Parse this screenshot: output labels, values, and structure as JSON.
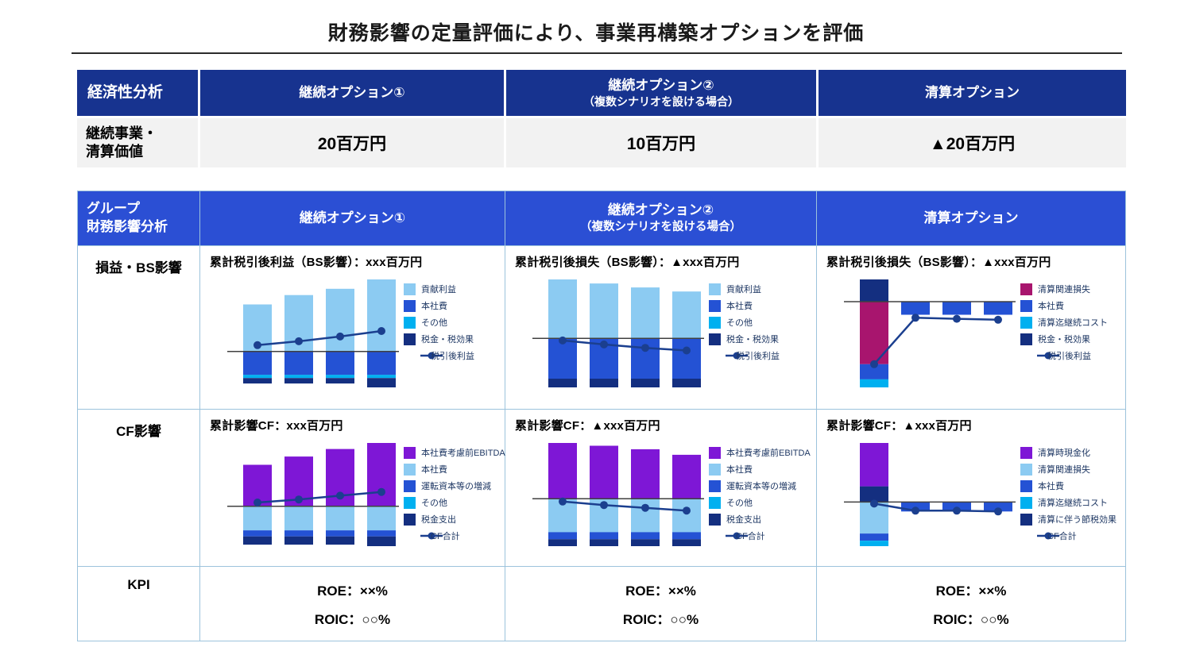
{
  "title": "財務影響の定量評価により、事業再構築オプションを評価",
  "colors": {
    "table1_header_bg": "#17338F",
    "table2_header_bg": "#2B4FD4",
    "table1_row_bg": "#F2F2F2",
    "table_border": "#9CC3DC",
    "legend_text": "#1F3864",
    "axis": "#404040",
    "light_blue": "#8CCBF2",
    "blue": "#2452D4",
    "cyan": "#00B0F0",
    "navy": "#142F80",
    "purple": "#7E17D6",
    "magenta": "#A8156E",
    "line": "#1B3F8F"
  },
  "table1": {
    "header_label": "経済性分析",
    "columns": [
      {
        "label": "継続オプション①",
        "sublabel": ""
      },
      {
        "label": "継続オプション②",
        "sublabel": "（複数シナリオを設ける場合）"
      },
      {
        "label": "清算オプション",
        "sublabel": ""
      }
    ],
    "row_label_line1": "継続事業・",
    "row_label_line2": "清算価値",
    "values": [
      "20百万円",
      "10百万円",
      "▲20百万円"
    ]
  },
  "table2": {
    "header_label_line1": "グループ",
    "header_label_line2": "財務影響分析",
    "columns": [
      {
        "label": "継続オプション①",
        "sublabel": ""
      },
      {
        "label": "継続オプション②",
        "sublabel": "（複数シナリオを設ける場合）"
      },
      {
        "label": "清算オプション",
        "sublabel": ""
      }
    ],
    "bs_row": {
      "label": "損益・BS影響",
      "cells": [
        {
          "title": "累計税引後利益（BS影響）：xxx百万円",
          "chart": "bs_opt1"
        },
        {
          "title": "累計税引後損失（BS影響）：▲xxx百万円",
          "chart": "bs_opt2"
        },
        {
          "title": "累計税引後損失（BS影響）：▲xxx百万円",
          "chart": "bs_liq"
        }
      ]
    },
    "cf_row": {
      "label": "CF影響",
      "cells": [
        {
          "title": "累計影響CF：xxx百万円",
          "chart": "cf_opt1"
        },
        {
          "title": "累計影響CF：▲xxx百万円",
          "chart": "cf_opt2"
        },
        {
          "title": "累計影響CF：▲xxx百万円",
          "chart": "cf_liq"
        }
      ]
    },
    "kpi_row": {
      "label": "KPI",
      "cells": [
        {
          "roe": "ROE：××%",
          "roic": "ROIC：○○%"
        },
        {
          "roe": "ROE：××%",
          "roic": "ROIC：○○%"
        },
        {
          "roe": "ROE：××%",
          "roic": "ROIC：○○%"
        }
      ]
    }
  },
  "chart_data": [
    {
      "id": "bs_opt1",
      "type": "bar",
      "stacked": true,
      "title": "累計税引後利益（BS影響）：xxx百万円",
      "series": [
        {
          "name": "貢献利益",
          "color": "light_blue",
          "values": [
            60,
            72,
            80,
            92
          ]
        },
        {
          "name": "本社費",
          "color": "blue",
          "values": [
            -30,
            -30,
            -30,
            -30
          ]
        },
        {
          "name": "その他",
          "color": "cyan",
          "values": [
            -4,
            -4,
            -4,
            -4
          ]
        },
        {
          "name": "税金・税効果",
          "color": "navy",
          "values": [
            -7,
            -7,
            -7,
            -12
          ]
        }
      ],
      "line": {
        "name": "税引後利益",
        "values": [
          8,
          13,
          19,
          26
        ]
      },
      "legend": [
        {
          "label": "貢献利益",
          "color": "light_blue"
        },
        {
          "label": "本社費",
          "color": "blue"
        },
        {
          "label": "その他",
          "color": "cyan"
        },
        {
          "label": "税金・税効果",
          "color": "navy"
        },
        {
          "label": "税引後利益",
          "color": "line",
          "type": "line"
        }
      ]
    },
    {
      "id": "bs_opt2",
      "type": "bar",
      "stacked": true,
      "title": "累計税引後損失（BS影響）：▲xxx百万円",
      "series": [
        {
          "name": "貢献利益",
          "color": "light_blue",
          "values": [
            88,
            82,
            76,
            70
          ]
        },
        {
          "name": "本社費",
          "color": "blue",
          "values": [
            -60,
            -60,
            -60,
            -60
          ]
        },
        {
          "name": "その他",
          "color": "cyan",
          "values": [
            0,
            0,
            0,
            0
          ]
        },
        {
          "name": "税金・税効果",
          "color": "navy",
          "values": [
            -13,
            -13,
            -13,
            -13
          ]
        }
      ],
      "line": {
        "name": "税引後利益",
        "values": [
          -3,
          -9,
          -14,
          -18
        ]
      },
      "legend": [
        {
          "label": "貢献利益",
          "color": "light_blue"
        },
        {
          "label": "本社費",
          "color": "blue"
        },
        {
          "label": "その他",
          "color": "cyan"
        },
        {
          "label": "税金・税効果",
          "color": "navy"
        },
        {
          "label": "税引後利益",
          "color": "line",
          "type": "line"
        }
      ]
    },
    {
      "id": "bs_liq",
      "type": "bar",
      "stacked": true,
      "title": "累計税引後損失（BS影響）：▲xxx百万円",
      "series": [
        {
          "name": "税金・税効果",
          "color": "navy",
          "values": [
            22,
            0,
            0,
            0
          ]
        },
        {
          "name": "清算関連損失",
          "color": "magenta",
          "values": [
            -62,
            0,
            0,
            0
          ]
        },
        {
          "name": "本社費",
          "color": "blue",
          "values": [
            -15,
            -13,
            -13,
            -13
          ]
        },
        {
          "name": "清算迄継続コスト",
          "color": "cyan",
          "values": [
            -8,
            0,
            0,
            0
          ]
        }
      ],
      "line": {
        "name": "税引後利益",
        "values": [
          -62,
          -16,
          -17,
          -18
        ]
      },
      "legend": [
        {
          "label": "清算関連損失",
          "color": "magenta"
        },
        {
          "label": "本社費",
          "color": "blue"
        },
        {
          "label": "清算迄継続コスト",
          "color": "cyan"
        },
        {
          "label": "税金・税効果",
          "color": "navy"
        },
        {
          "label": "税引後利益",
          "color": "line",
          "type": "line"
        }
      ]
    },
    {
      "id": "cf_opt1",
      "type": "bar",
      "stacked": true,
      "title": "累計影響CF：xxx百万円",
      "series": [
        {
          "name": "本社費考慮前EBITDA",
          "color": "purple",
          "values": [
            55,
            66,
            76,
            84
          ]
        },
        {
          "name": "本社費",
          "color": "light_blue",
          "values": [
            -32,
            -32,
            -32,
            -32
          ]
        },
        {
          "name": "運転資本等の増減",
          "color": "blue",
          "values": [
            -8,
            -8,
            -8,
            -8
          ]
        },
        {
          "name": "その他",
          "color": "cyan",
          "values": [
            0,
            0,
            0,
            0
          ]
        },
        {
          "name": "税金支出",
          "color": "navy",
          "values": [
            -11,
            -11,
            -11,
            -13
          ]
        }
      ],
      "line": {
        "name": "CF合計",
        "values": [
          5,
          9,
          14,
          19
        ]
      },
      "legend": [
        {
          "label": "本社費考慮前EBITDA",
          "color": "purple"
        },
        {
          "label": "本社費",
          "color": "light_blue"
        },
        {
          "label": "運転資本等の増減",
          "color": "blue"
        },
        {
          "label": "その他",
          "color": "cyan"
        },
        {
          "label": "税金支出",
          "color": "navy"
        },
        {
          "label": "CF合計",
          "color": "line",
          "type": "line"
        }
      ]
    },
    {
      "id": "cf_opt2",
      "type": "bar",
      "stacked": true,
      "title": "累計影響CF：▲xxx百万円",
      "series": [
        {
          "name": "本社費考慮前EBITDA",
          "color": "purple",
          "values": [
            80,
            76,
            71,
            63
          ]
        },
        {
          "name": "本社費",
          "color": "light_blue",
          "values": [
            -48,
            -48,
            -48,
            -48
          ]
        },
        {
          "name": "運転資本等の増減",
          "color": "blue",
          "values": [
            -10,
            -10,
            -10,
            -10
          ]
        },
        {
          "name": "その他",
          "color": "cyan",
          "values": [
            0,
            0,
            0,
            0
          ]
        },
        {
          "name": "税金支出",
          "color": "navy",
          "values": [
            -10,
            -10,
            -10,
            -10
          ]
        }
      ],
      "line": {
        "name": "CF合計",
        "values": [
          -4,
          -9,
          -13,
          -17
        ]
      },
      "legend": [
        {
          "label": "本社費考慮前EBITDA",
          "color": "purple"
        },
        {
          "label": "本社費",
          "color": "light_blue"
        },
        {
          "label": "運転資本等の増減",
          "color": "blue"
        },
        {
          "label": "その他",
          "color": "cyan"
        },
        {
          "label": "税金支出",
          "color": "navy"
        },
        {
          "label": "CF合計",
          "color": "line",
          "type": "line"
        }
      ]
    },
    {
      "id": "cf_liq",
      "type": "bar",
      "stacked": true,
      "title": "累計影響CF：▲xxx百万円",
      "series": [
        {
          "name": "清算に伴う節税効果",
          "color": "navy",
          "values": [
            20,
            0,
            0,
            0
          ]
        },
        {
          "name": "清算時現金化",
          "color": "purple",
          "values": [
            55,
            0,
            0,
            0
          ]
        },
        {
          "name": "清算関連損失",
          "color": "light_blue",
          "values": [
            -40,
            0,
            0,
            0
          ]
        },
        {
          "name": "本社費",
          "color": "blue",
          "values": [
            -9,
            -12,
            -12,
            -12
          ]
        },
        {
          "name": "清算迄継続コスト",
          "color": "cyan",
          "values": [
            -7,
            0,
            0,
            0
          ]
        }
      ],
      "line": {
        "name": "CF合計",
        "values": [
          -2,
          -11,
          -11,
          -12
        ]
      },
      "legend": [
        {
          "label": "清算時現金化",
          "color": "purple"
        },
        {
          "label": "清算関連損失",
          "color": "light_blue"
        },
        {
          "label": "本社費",
          "color": "blue"
        },
        {
          "label": "清算迄継続コスト",
          "color": "cyan"
        },
        {
          "label": "清算に伴う節税効果",
          "color": "navy"
        },
        {
          "label": "CF合計",
          "color": "line",
          "type": "line"
        }
      ]
    }
  ]
}
